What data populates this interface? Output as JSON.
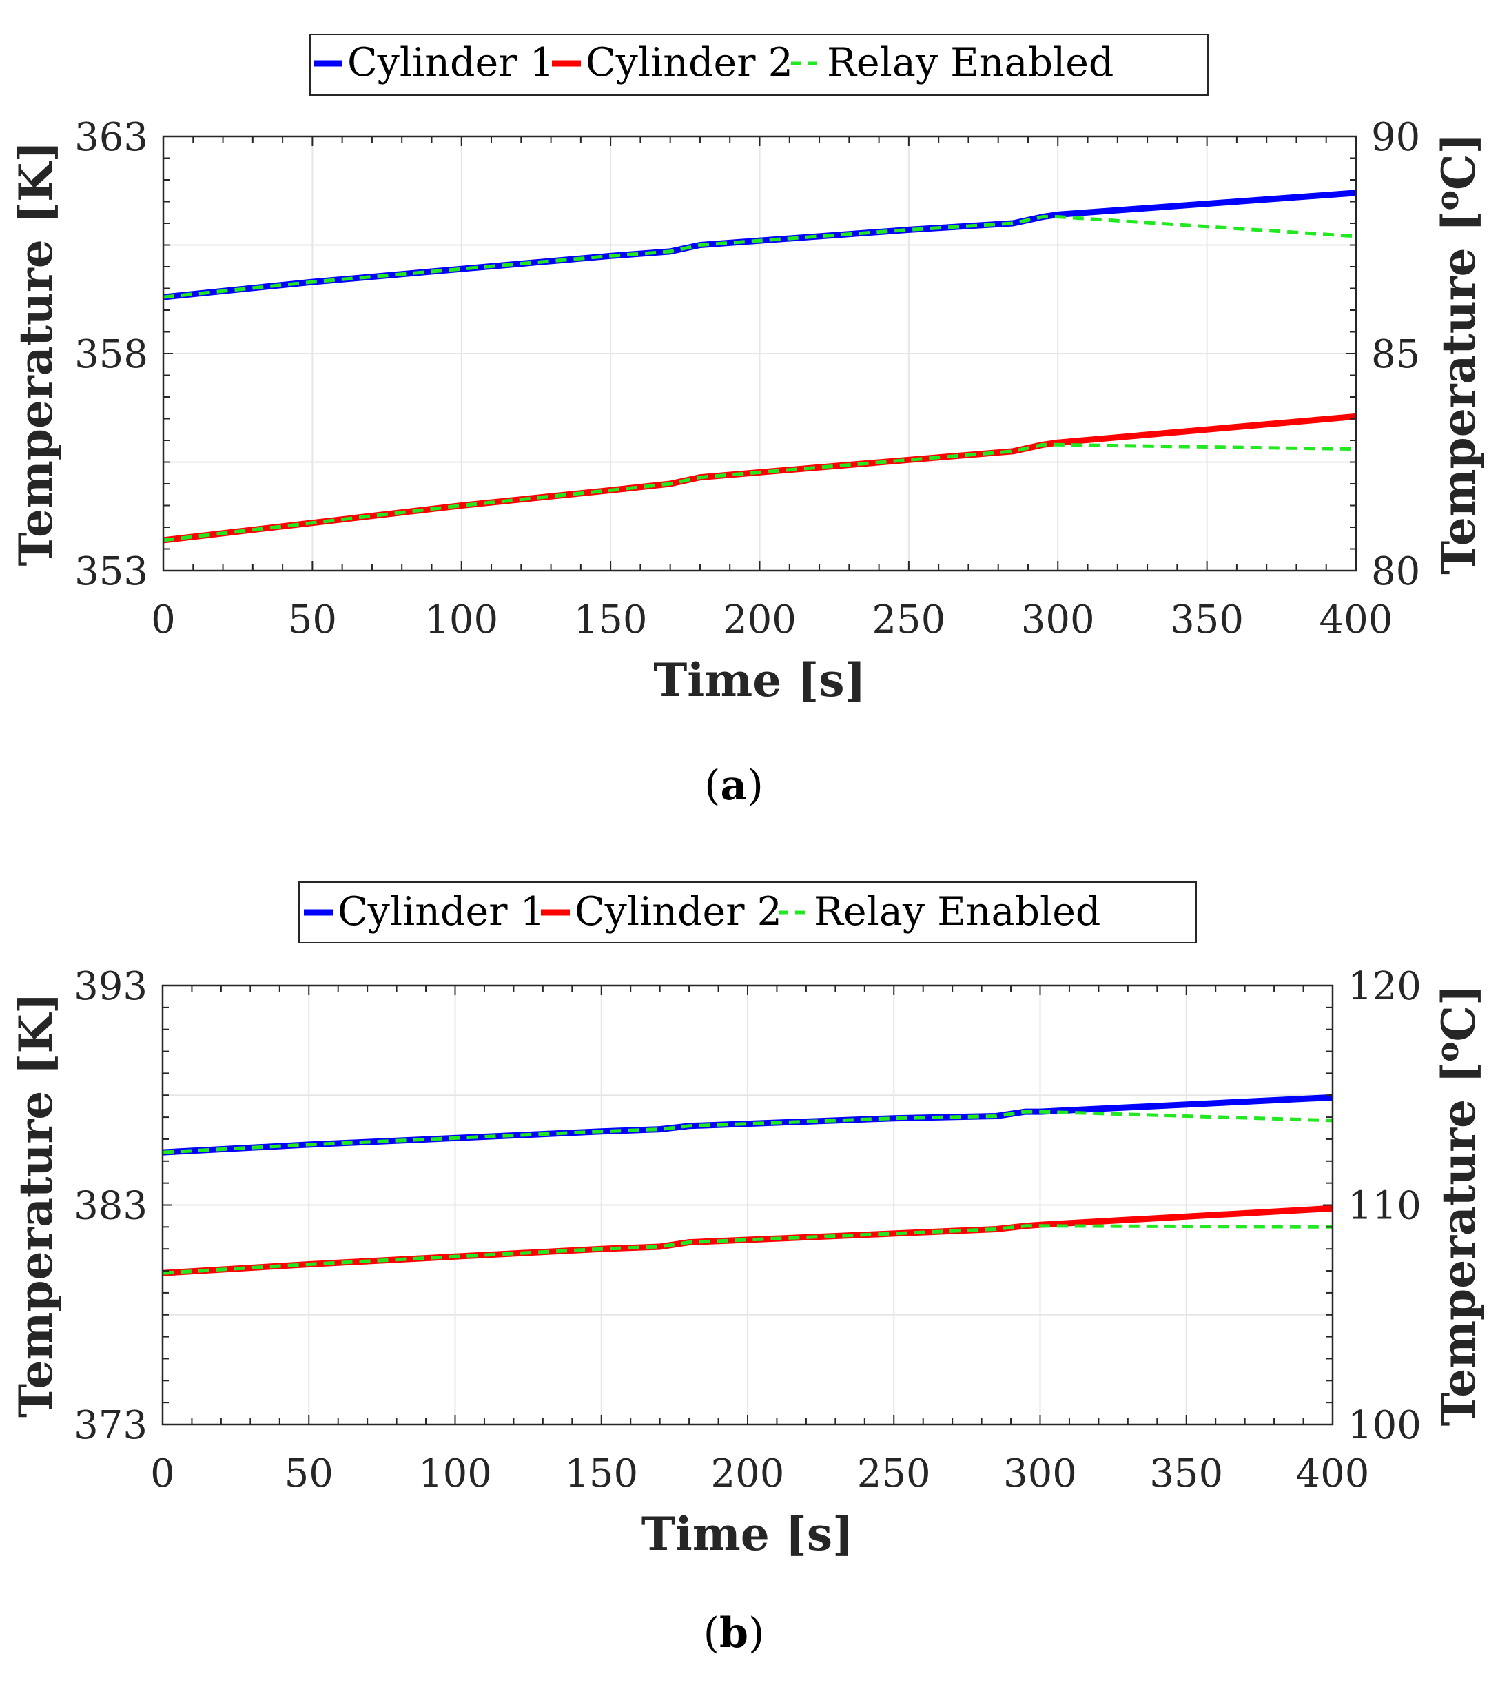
{
  "chart_data": [
    {
      "type": "line",
      "caption_letter": "a",
      "legend": [
        "Cylinder 1",
        "Cylinder 2",
        "Relay Enabled"
      ],
      "xlabel": "Time [s]",
      "ylabel_left": "Temperature [K]",
      "ylabel_right_prefix": "Temperature [",
      "ylabel_right_sup": "o",
      "ylabel_right_suffix": "C]",
      "xlim": [
        0,
        400
      ],
      "ylim_left": [
        353,
        363
      ],
      "ylim_right": [
        80,
        90
      ],
      "xticks": [
        0,
        50,
        100,
        150,
        200,
        250,
        300,
        350,
        400
      ],
      "yticks_left": [
        353,
        358,
        363
      ],
      "yticks_right": [
        80,
        85,
        90
      ],
      "grid": true,
      "series": [
        {
          "name": "Cylinder 1",
          "color": "#0000ff",
          "style": "solid",
          "x": [
            0,
            50,
            100,
            150,
            170,
            180,
            250,
            285,
            295,
            300,
            400
          ],
          "y": [
            359.3,
            359.65,
            359.95,
            360.25,
            360.35,
            360.5,
            360.85,
            361.0,
            361.15,
            361.2,
            361.7
          ]
        },
        {
          "name": "Cylinder 2",
          "color": "#ff0000",
          "style": "solid",
          "x": [
            0,
            50,
            100,
            150,
            170,
            180,
            250,
            285,
            295,
            300,
            400
          ],
          "y": [
            353.7,
            354.1,
            354.5,
            354.85,
            355.0,
            355.15,
            355.55,
            355.75,
            355.9,
            355.95,
            356.55
          ]
        },
        {
          "name": "Relay Enabled",
          "color": "#22e822",
          "style": "dashed",
          "x": [
            0,
            50,
            100,
            150,
            170,
            180,
            250,
            285,
            295,
            300,
            400
          ],
          "y": [
            359.3,
            359.65,
            359.95,
            360.25,
            360.35,
            360.5,
            360.85,
            361.0,
            361.15,
            361.15,
            360.7
          ]
        },
        {
          "name": "Relay Enabled",
          "color": "#22e822",
          "style": "dashed",
          "x": [
            0,
            50,
            100,
            150,
            170,
            180,
            250,
            285,
            295,
            300,
            400
          ],
          "y": [
            353.7,
            354.1,
            354.5,
            354.85,
            355.0,
            355.15,
            355.55,
            355.75,
            355.9,
            355.9,
            355.8
          ]
        }
      ]
    },
    {
      "type": "line",
      "caption_letter": "b",
      "legend": [
        "Cylinder 1",
        "Cylinder 2",
        "Relay Enabled"
      ],
      "xlabel": "Time [s]",
      "ylabel_left": "Temperature [K]",
      "ylabel_right_prefix": "Temperature [",
      "ylabel_right_sup": "o",
      "ylabel_right_suffix": "C]",
      "xlim": [
        0,
        400
      ],
      "ylim_left": [
        373,
        393
      ],
      "ylim_right": [
        100,
        120
      ],
      "xticks": [
        0,
        50,
        100,
        150,
        200,
        250,
        300,
        350,
        400
      ],
      "yticks_left": [
        373,
        383,
        393
      ],
      "yticks_right": [
        100,
        110,
        120
      ],
      "grid": true,
      "series": [
        {
          "name": "Cylinder 1",
          "color": "#0000ff",
          "style": "solid",
          "x": [
            0,
            50,
            100,
            150,
            170,
            180,
            250,
            285,
            295,
            300,
            400
          ],
          "y": [
            385.4,
            385.75,
            386.05,
            386.35,
            386.45,
            386.6,
            386.95,
            387.05,
            387.25,
            387.25,
            387.9
          ]
        },
        {
          "name": "Cylinder 2",
          "color": "#ff0000",
          "style": "solid",
          "x": [
            0,
            50,
            100,
            150,
            170,
            180,
            250,
            285,
            295,
            300,
            400
          ],
          "y": [
            379.9,
            380.3,
            380.65,
            381.0,
            381.1,
            381.3,
            381.7,
            381.9,
            382.05,
            382.1,
            382.85
          ]
        },
        {
          "name": "Relay Enabled",
          "color": "#22e822",
          "style": "dashed",
          "x": [
            0,
            50,
            100,
            150,
            170,
            180,
            250,
            285,
            295,
            300,
            400
          ],
          "y": [
            385.4,
            385.75,
            386.05,
            386.35,
            386.45,
            386.6,
            386.95,
            387.05,
            387.25,
            387.25,
            386.85
          ]
        },
        {
          "name": "Relay Enabled",
          "color": "#22e822",
          "style": "dashed",
          "x": [
            0,
            50,
            100,
            150,
            170,
            180,
            250,
            285,
            295,
            300,
            400
          ],
          "y": [
            379.9,
            380.3,
            380.65,
            381.0,
            381.1,
            381.3,
            381.7,
            381.9,
            382.05,
            382.05,
            382.0
          ]
        }
      ]
    }
  ]
}
